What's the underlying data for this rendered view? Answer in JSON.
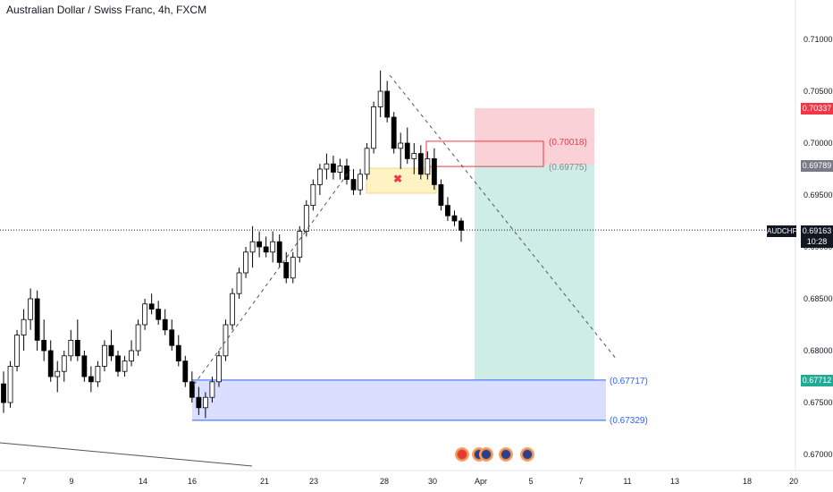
{
  "title": "Australian Dollar / Swiss Franc, 4h, FXCM",
  "symbol": "AUDCHF",
  "current_price": "0.69163",
  "countdown": "10:28",
  "tags": {
    "stop": "0.70337",
    "entry": "0.69789",
    "target": "0.67712"
  },
  "annotations": {
    "level_1": "(0.70018)",
    "level_2": "(0.69775)",
    "level_3": "(0.67717)",
    "level_4": "(0.67329)"
  },
  "colors": {
    "up": "#ffffff",
    "down": "#000000",
    "stop_zone": "#f7c6cc",
    "target_zone": "#c9ebe3",
    "demand_zone": "#d6dcff",
    "supply_zone": "#fff3c4",
    "tag_red": "#f23645",
    "tag_gray": "#787b86",
    "tag_green": "#22ab94",
    "annotation_blue": "#2962ff",
    "annotation_red": "#f23645"
  },
  "chart_data": {
    "type": "candlestick",
    "title": "Australian Dollar / Swiss Franc, 4h, FXCM",
    "y_ticks": [
      "0.71000",
      "0.70500",
      "0.70000",
      "0.69500",
      "0.69000",
      "0.68500",
      "0.68000",
      "0.67500",
      "0.67000"
    ],
    "ylim": [
      0.6692,
      0.7125
    ],
    "x_ticks": [
      "7",
      "9",
      "14",
      "16",
      "21",
      "23",
      "28",
      "30",
      "Apr",
      "5",
      "7",
      "11",
      "13",
      "18",
      "20"
    ],
    "price_levels": {
      "current": 0.69163,
      "stop": 0.70337,
      "entry": 0.69789,
      "target": 0.67712,
      "demand_top": 0.67717,
      "demand_bottom": 0.67329,
      "level_70018": 0.70018,
      "level_69775": 0.69775
    },
    "trend_lines": [
      {
        "from": [
          0.6755
        ],
        "to": [
          0.6977
        ],
        "style": "dashed"
      },
      {
        "from": [
          0.707
        ],
        "to": [
          0.6795
        ],
        "style": "dashed"
      }
    ],
    "candles_ohlc": [
      [
        0.6768,
        0.678,
        0.674,
        0.675
      ],
      [
        0.675,
        0.679,
        0.6745,
        0.6785
      ],
      [
        0.6785,
        0.682,
        0.678,
        0.6815
      ],
      [
        0.6815,
        0.684,
        0.68,
        0.683
      ],
      [
        0.683,
        0.686,
        0.682,
        0.685
      ],
      [
        0.685,
        0.6858,
        0.68,
        0.681
      ],
      [
        0.681,
        0.683,
        0.679,
        0.68
      ],
      [
        0.68,
        0.681,
        0.677,
        0.6775
      ],
      [
        0.6775,
        0.679,
        0.676,
        0.678
      ],
      [
        0.678,
        0.68,
        0.677,
        0.6795
      ],
      [
        0.6795,
        0.682,
        0.679,
        0.681
      ],
      [
        0.681,
        0.683,
        0.679,
        0.6795
      ],
      [
        0.6795,
        0.68,
        0.677,
        0.6775
      ],
      [
        0.6775,
        0.6785,
        0.676,
        0.677
      ],
      [
        0.677,
        0.679,
        0.6765,
        0.6785
      ],
      [
        0.6785,
        0.681,
        0.678,
        0.6805
      ],
      [
        0.6805,
        0.682,
        0.679,
        0.6795
      ],
      [
        0.6795,
        0.68,
        0.6775,
        0.678
      ],
      [
        0.678,
        0.6795,
        0.6775,
        0.679
      ],
      [
        0.679,
        0.681,
        0.6785,
        0.68
      ],
      [
        0.68,
        0.683,
        0.6795,
        0.6825
      ],
      [
        0.6825,
        0.685,
        0.682,
        0.6845
      ],
      [
        0.6845,
        0.6855,
        0.6835,
        0.684
      ],
      [
        0.684,
        0.6848,
        0.6825,
        0.683
      ],
      [
        0.683,
        0.684,
        0.6815,
        0.682
      ],
      [
        0.682,
        0.683,
        0.68,
        0.6805
      ],
      [
        0.6805,
        0.6815,
        0.6785,
        0.679
      ],
      [
        0.679,
        0.6795,
        0.6765,
        0.677
      ],
      [
        0.677,
        0.678,
        0.675,
        0.6755
      ],
      [
        0.6755,
        0.6765,
        0.6738,
        0.6745
      ],
      [
        0.6745,
        0.676,
        0.6735,
        0.6755
      ],
      [
        0.6755,
        0.6775,
        0.675,
        0.677
      ],
      [
        0.677,
        0.68,
        0.6765,
        0.6795
      ],
      [
        0.6795,
        0.683,
        0.679,
        0.6825
      ],
      [
        0.6825,
        0.686,
        0.682,
        0.6855
      ],
      [
        0.6855,
        0.688,
        0.685,
        0.6875
      ],
      [
        0.6875,
        0.69,
        0.687,
        0.6895
      ],
      [
        0.6895,
        0.692,
        0.688,
        0.6905
      ],
      [
        0.6905,
        0.6915,
        0.689,
        0.69
      ],
      [
        0.69,
        0.691,
        0.689,
        0.6895
      ],
      [
        0.6895,
        0.6915,
        0.6885,
        0.6905
      ],
      [
        0.6905,
        0.6912,
        0.688,
        0.6885
      ],
      [
        0.6885,
        0.6895,
        0.6865,
        0.687
      ],
      [
        0.687,
        0.6895,
        0.6865,
        0.689
      ],
      [
        0.689,
        0.692,
        0.6885,
        0.6915
      ],
      [
        0.6915,
        0.6945,
        0.691,
        0.694
      ],
      [
        0.694,
        0.6965,
        0.6935,
        0.696
      ],
      [
        0.696,
        0.698,
        0.695,
        0.6975
      ],
      [
        0.6975,
        0.699,
        0.6965,
        0.698
      ],
      [
        0.698,
        0.6988,
        0.6965,
        0.6972
      ],
      [
        0.6972,
        0.6985,
        0.6965,
        0.6978
      ],
      [
        0.6978,
        0.6985,
        0.696,
        0.6965
      ],
      [
        0.6965,
        0.6975,
        0.695,
        0.6955
      ],
      [
        0.6955,
        0.6975,
        0.695,
        0.697
      ],
      [
        0.697,
        0.7,
        0.6965,
        0.6995
      ],
      [
        0.6995,
        0.704,
        0.699,
        0.7035
      ],
      [
        0.7035,
        0.707,
        0.7025,
        0.705
      ],
      [
        0.705,
        0.706,
        0.702,
        0.7025
      ],
      [
        0.7025,
        0.703,
        0.699,
        0.6995
      ],
      [
        0.6995,
        0.701,
        0.6975,
        0.7
      ],
      [
        0.7,
        0.7015,
        0.698,
        0.6985
      ],
      [
        0.6985,
        0.7,
        0.697,
        0.699
      ],
      [
        0.699,
        0.6998,
        0.6965,
        0.697
      ],
      [
        0.697,
        0.6992,
        0.6965,
        0.6985
      ],
      [
        0.6985,
        0.6995,
        0.6955,
        0.696
      ],
      [
        0.696,
        0.6965,
        0.6935,
        0.694
      ],
      [
        0.694,
        0.6948,
        0.6925,
        0.693
      ],
      [
        0.693,
        0.6935,
        0.692,
        0.6925
      ],
      [
        0.6925,
        0.6928,
        0.6905,
        0.6916
      ]
    ]
  }
}
